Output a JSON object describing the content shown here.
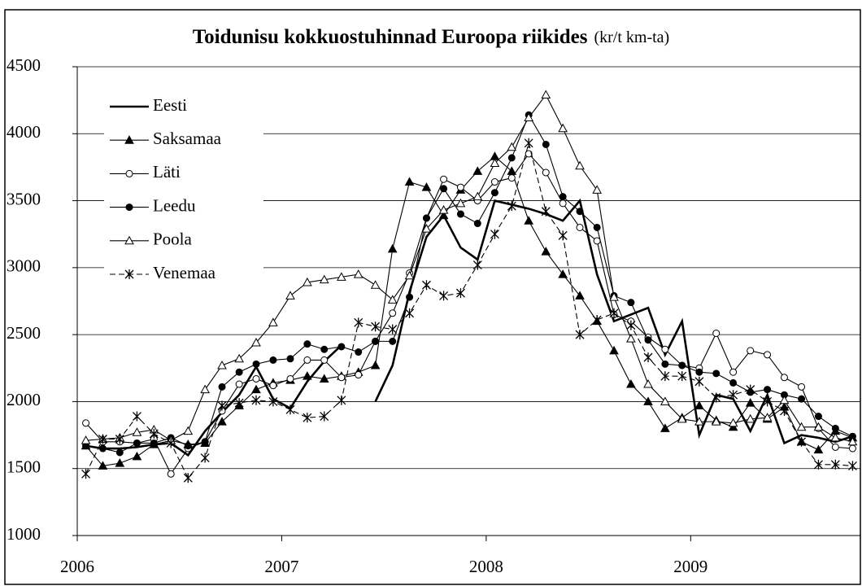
{
  "chart_data": {
    "type": "line",
    "title": "Toidunisu kokkuostuhinnad Euroopa riikides",
    "subtitle": "(kr/t km-ta)",
    "x": [
      2006.042,
      2006.125,
      2006.208,
      2006.292,
      2006.375,
      2006.458,
      2006.542,
      2006.625,
      2006.708,
      2006.792,
      2006.875,
      2006.958,
      2007.042,
      2007.125,
      2007.208,
      2007.292,
      2007.375,
      2007.458,
      2007.542,
      2007.625,
      2007.708,
      2007.792,
      2007.875,
      2007.958,
      2008.042,
      2008.125,
      2008.208,
      2008.292,
      2008.375,
      2008.458,
      2008.542,
      2008.625,
      2008.708,
      2008.792,
      2008.875,
      2008.958,
      2009.042,
      2009.125,
      2009.208,
      2009.292,
      2009.375,
      2009.458,
      2009.542,
      2009.625,
      2009.708,
      2009.792
    ],
    "xlim": [
      2006,
      2009.83
    ],
    "xticks": [
      2006,
      2007,
      2008,
      2009
    ],
    "ylim": [
      1000,
      4500
    ],
    "yticks": [
      1000,
      1500,
      2000,
      2500,
      3000,
      3500,
      4000,
      4500
    ],
    "grid": true,
    "legend": "upper left",
    "series": [
      {
        "name": "Eesti",
        "color": "#000000",
        "marker": "none",
        "line_style": "bold",
        "values": [
          1670,
          1650,
          1650,
          1660,
          1680,
          1690,
          1600,
          1780,
          1920,
          2050,
          2260,
          2020,
          1950,
          2150,
          2300,
          2420,
          null,
          2000,
          2270,
          2820,
          3230,
          3390,
          3150,
          3060,
          3500,
          3470,
          3440,
          3400,
          3350,
          3500,
          2950,
          2600,
          2650,
          2700,
          2350,
          2600,
          1750,
          2050,
          2020,
          1780,
          2050,
          1690,
          1750,
          1730,
          1700,
          1740
        ]
      },
      {
        "name": "Saksamaa",
        "color": "#000000",
        "marker": "triangle-filled",
        "line_style": "solid",
        "values": [
          1670,
          1520,
          1540,
          1590,
          1680,
          1710,
          1680,
          1690,
          1850,
          1970,
          2090,
          2140,
          2160,
          2190,
          2170,
          2190,
          2220,
          2270,
          3140,
          3640,
          3600,
          3390,
          3580,
          3720,
          3830,
          3720,
          3350,
          3120,
          2950,
          2790,
          2600,
          2380,
          2130,
          2000,
          1800,
          1880,
          1970,
          1860,
          1810,
          1990,
          1870,
          1960,
          1700,
          1640,
          1780,
          1730
        ]
      },
      {
        "name": "Läti",
        "color": "#000000",
        "marker": "circle-open",
        "line_style": "solid",
        "values": [
          1840,
          1700,
          1700,
          1690,
          1720,
          1460,
          1650,
          1700,
          1930,
          2130,
          2170,
          2120,
          2170,
          2310,
          2310,
          2180,
          2200,
          2450,
          2660,
          2960,
          3370,
          3660,
          3600,
          3500,
          3640,
          3670,
          3850,
          3710,
          3480,
          3300,
          3200,
          2650,
          2600,
          2480,
          2390,
          2270,
          2250,
          2510,
          2220,
          2380,
          2350,
          2180,
          2110,
          1800,
          1660,
          1650
        ]
      },
      {
        "name": "Leedu",
        "color": "#000000",
        "marker": "circle-filled",
        "line_style": "solid",
        "values": [
          1670,
          1650,
          1620,
          1690,
          1690,
          1730,
          1670,
          1700,
          2110,
          2220,
          2280,
          2310,
          2320,
          2430,
          2390,
          2410,
          2370,
          2450,
          2450,
          2780,
          3370,
          3590,
          3400,
          3330,
          3560,
          3820,
          4140,
          3920,
          3530,
          3420,
          3300,
          2790,
          2740,
          2460,
          2280,
          2270,
          2220,
          2210,
          2140,
          2070,
          2090,
          2050,
          2020,
          1890,
          1800,
          1740
        ]
      },
      {
        "name": "Poola",
        "color": "#000000",
        "marker": "triangle-open",
        "line_style": "solid",
        "values": [
          1710,
          1720,
          1730,
          1770,
          1790,
          1710,
          1780,
          2090,
          2270,
          2320,
          2440,
          2590,
          2790,
          2890,
          2910,
          2930,
          2950,
          2870,
          2760,
          2940,
          3290,
          3430,
          3480,
          3530,
          3780,
          3900,
          4120,
          4290,
          4040,
          3760,
          3580,
          2780,
          2470,
          2130,
          2000,
          1870,
          1850,
          1850,
          1840,
          1870,
          1880,
          2010,
          1810,
          1810,
          1730,
          1700
        ]
      },
      {
        "name": "Venemaa",
        "color": "#000000",
        "marker": "asterisk",
        "line_style": "dashed",
        "values": [
          1460,
          1720,
          1720,
          1890,
          1760,
          1690,
          1430,
          1580,
          1970,
          1990,
          2010,
          2000,
          1940,
          1880,
          1890,
          2010,
          2590,
          2560,
          2540,
          2660,
          2870,
          2790,
          2810,
          3020,
          3250,
          3460,
          3930,
          3420,
          3240,
          2500,
          2610,
          2660,
          2570,
          2330,
          2190,
          2190,
          2150,
          2030,
          2050,
          2090,
          2000,
          1930,
          1700,
          1530,
          1530,
          1520
        ]
      }
    ]
  }
}
